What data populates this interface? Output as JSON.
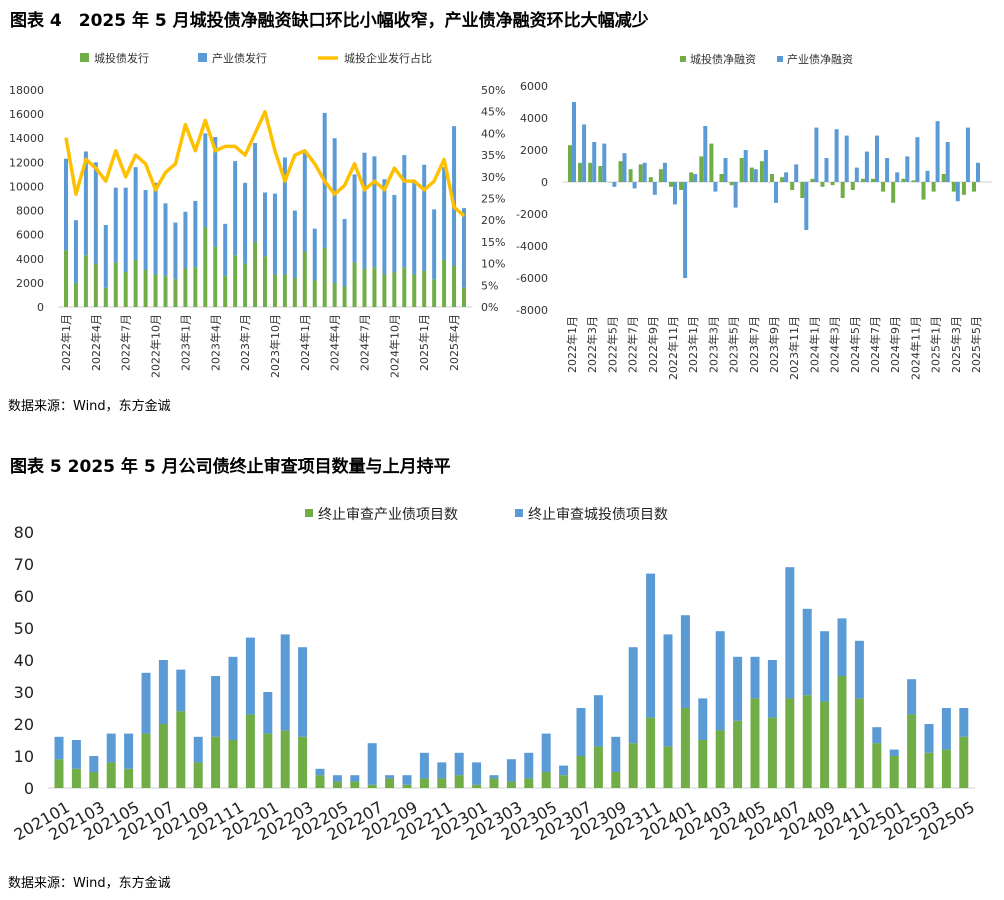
{
  "figure4": {
    "title": "图表 4　2025 年 5 月城投债净融资缺口环比小幅收窄，产业债净融资环比大幅减少",
    "source": "数据来源：Wind，东方金诚"
  },
  "figure5": {
    "title": "图表 5  2025 年 5 月公司债终止审查项目数量与上月持平",
    "source": "数据来源：Wind，东方金诚"
  },
  "colors": {
    "green": "#70ad47",
    "blue": "#5b9bd5",
    "yellow": "#ffc000"
  },
  "chart_data": [
    {
      "type": "bar",
      "stacked": true,
      "x_label_every": 3,
      "categories": [
        "2022年1月",
        "2022年2月",
        "2022年3月",
        "2022年4月",
        "2022年5月",
        "2022年6月",
        "2022年7月",
        "2022年8月",
        "2022年9月",
        "2022年10月",
        "2022年11月",
        "2022年12月",
        "2023年1月",
        "2023年2月",
        "2023年3月",
        "2023年4月",
        "2023年5月",
        "2023年6月",
        "2023年7月",
        "2023年8月",
        "2023年9月",
        "2023年10月",
        "2023年11月",
        "2023年12月",
        "2024年1月",
        "2024年2月",
        "2024年3月",
        "2024年4月",
        "2024年5月",
        "2024年6月",
        "2024年7月",
        "2024年8月",
        "2024年9月",
        "2024年10月",
        "2024年11月",
        "2024年12月",
        "2025年1月",
        "2025年2月",
        "2025年3月",
        "2025年4月",
        "2025年5月"
      ],
      "series": [
        {
          "name": "城投债发行",
          "type": "bar",
          "axis": "left",
          "values": [
            4700,
            2000,
            4300,
            3600,
            1600,
            3700,
            2900,
            3900,
            3100,
            2700,
            2600,
            2300,
            3200,
            3300,
            6600,
            5000,
            2600,
            4300,
            3600,
            5400,
            4200,
            2700,
            2700,
            2400,
            4600,
            2200,
            4900,
            2000,
            1700,
            3700,
            3200,
            3300,
            2700,
            2900,
            3300,
            2700,
            3000,
            2300,
            3900,
            3400,
            1600
          ]
        },
        {
          "name": "产业债发行",
          "type": "bar",
          "axis": "left",
          "values": [
            7600,
            5200,
            8600,
            8400,
            5200,
            6200,
            7000,
            7700,
            6600,
            7600,
            6000,
            4700,
            4700,
            5500,
            7800,
            9100,
            4300,
            7800,
            6700,
            8200,
            5300,
            6700,
            9700,
            5600,
            8300,
            4300,
            11200,
            12000,
            5600,
            7300,
            9600,
            9200,
            7900,
            6400,
            9300,
            7700,
            8800,
            5800,
            7700,
            11600,
            6600
          ]
        },
        {
          "name": "城投企业发行占比",
          "type": "line",
          "axis": "right",
          "values": [
            39,
            26,
            34,
            32,
            29,
            36,
            30,
            35,
            33,
            27,
            31,
            33,
            42,
            36,
            43,
            36,
            37,
            37,
            35,
            40,
            45,
            36,
            29,
            35,
            36,
            33,
            29,
            26,
            28,
            33,
            27,
            29,
            27,
            32,
            29,
            29,
            27,
            29,
            34,
            23,
            21
          ]
        }
      ],
      "left_axis": {
        "range": [
          0,
          18000
        ],
        "step": 2000
      },
      "right_axis": {
        "range": [
          0,
          50
        ],
        "step": 5,
        "unit": "%"
      },
      "legend": "top"
    },
    {
      "type": "bar",
      "x_label_every": 2,
      "categories": [
        "2022年1月",
        "2022年2月",
        "2022年3月",
        "2022年4月",
        "2022年5月",
        "2022年6月",
        "2022年7月",
        "2022年8月",
        "2022年9月",
        "2022年10月",
        "2022年11月",
        "2022年12月",
        "2023年1月",
        "2023年2月",
        "2023年3月",
        "2023年4月",
        "2023年5月",
        "2023年6月",
        "2023年7月",
        "2023年8月",
        "2023年9月",
        "2023年10月",
        "2023年11月",
        "2023年12月",
        "2024年1月",
        "2024年2月",
        "2024年3月",
        "2024年4月",
        "2024年5月",
        "2024年6月",
        "2024年7月",
        "2024年8月",
        "2024年9月",
        "2024年10月",
        "2024年11月",
        "2024年12月",
        "2025年1月",
        "2025年2月",
        "2025年3月",
        "2025年4月",
        "2025年5月"
      ],
      "series": [
        {
          "name": "城投债净融资",
          "values": [
            2300,
            1200,
            1200,
            1000,
            0,
            1300,
            800,
            1100,
            300,
            800,
            -300,
            -500,
            600,
            1600,
            2400,
            500,
            -200,
            1500,
            900,
            1300,
            500,
            300,
            -500,
            -1000,
            200,
            -300,
            -200,
            -1000,
            -500,
            200,
            200,
            -600,
            -1300,
            200,
            100,
            -1100,
            -600,
            500,
            -600,
            -800,
            -600
          ]
        },
        {
          "name": "产业债净融资",
          "values": [
            5000,
            3600,
            2500,
            2400,
            -300,
            1800,
            -400,
            1200,
            -800,
            1200,
            -1400,
            -6000,
            500,
            3500,
            -600,
            1500,
            -1600,
            2000,
            800,
            2000,
            -1300,
            600,
            1100,
            -3000,
            3400,
            1500,
            3300,
            2900,
            900,
            1900,
            2900,
            1500,
            600,
            1600,
            2800,
            700,
            3800,
            2500,
            -1200,
            3400,
            1200
          ]
        }
      ],
      "y_axis": {
        "range": [
          -8000,
          6000
        ],
        "step": 2000
      },
      "legend": "top"
    },
    {
      "type": "bar",
      "stacked": true,
      "x_label_every": 2,
      "categories": [
        "202101",
        "202102",
        "202103",
        "202104",
        "202105",
        "202106",
        "202107",
        "202108",
        "202109",
        "202110",
        "202111",
        "202112",
        "202201",
        "202202",
        "202203",
        "202204",
        "202205",
        "202206",
        "202207",
        "202208",
        "202209",
        "202210",
        "202211",
        "202212",
        "202301",
        "202302",
        "202303",
        "202304",
        "202305",
        "202306",
        "202307",
        "202308",
        "202309",
        "202310",
        "202311",
        "202312",
        "202401",
        "202402",
        "202403",
        "202404",
        "202405",
        "202406",
        "202407",
        "202408",
        "202409",
        "202410",
        "202411",
        "202412",
        "202501",
        "202502",
        "202503",
        "202504",
        "202505"
      ],
      "series": [
        {
          "name": "终止审查产业债项目数",
          "values": [
            9,
            6,
            5,
            8,
            6,
            17,
            20,
            24,
            8,
            16,
            15,
            23,
            17,
            18,
            16,
            4,
            2,
            2,
            1,
            3,
            1,
            3,
            3,
            4,
            1,
            3,
            2,
            3,
            5,
            4,
            10,
            13,
            5,
            14,
            22,
            13,
            25,
            15,
            18,
            21,
            28,
            22,
            28,
            29,
            27,
            35,
            28,
            14,
            10,
            23,
            11,
            12,
            16
          ]
        },
        {
          "name": "终止审查城投债项目数",
          "values": [
            7,
            9,
            5,
            9,
            11,
            19,
            20,
            13,
            8,
            19,
            26,
            24,
            13,
            30,
            28,
            2,
            2,
            2,
            13,
            1,
            3,
            8,
            5,
            7,
            7,
            1,
            7,
            8,
            12,
            3,
            15,
            16,
            11,
            30,
            45,
            35,
            29,
            13,
            31,
            20,
            13,
            18,
            41,
            27,
            22,
            18,
            18,
            5,
            2,
            11,
            9,
            13,
            9
          ]
        }
      ],
      "y_axis": {
        "range": [
          0,
          80
        ],
        "step": 10
      },
      "legend": "top"
    }
  ]
}
